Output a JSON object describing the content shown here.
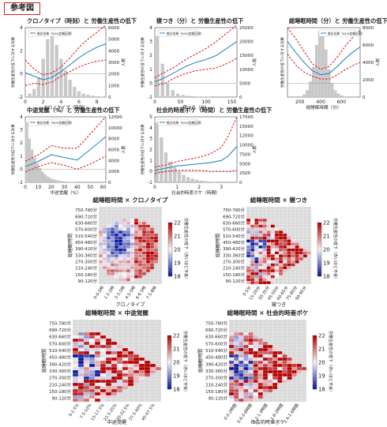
{
  "badge": "参考図",
  "colors": {
    "accent": "#d62222",
    "line": "#2e86c1",
    "hist": "#c8c8c8",
    "heat_high": "#b40000",
    "heat_low": "#0a1a9a",
    "heat_na": "#d9d9d9"
  },
  "chart_data": [
    {
      "type": "line",
      "title": "クロノタイプ（時刻）と 労働生産性の低下",
      "xlabel": "クロノタイプ（時刻）",
      "ylabel": "労働生産性の低下に対する効果",
      "y2label": "人数",
      "legend": "推計効果（95%信頼区間）",
      "legend_position": "top-left",
      "xticks": [
        "0",
        "2",
        "4",
        "6",
        "8"
      ],
      "xlim": [
        0,
        9
      ],
      "ylim": [
        -2,
        4
      ],
      "y2lim": [
        0,
        6000
      ],
      "yticks": [
        "-2",
        "0",
        "2",
        "4"
      ],
      "y2ticks": [
        "0",
        "1000",
        "2000",
        "3000",
        "4000",
        "5000",
        "6000"
      ],
      "hist": [
        {
          "x": 0.5,
          "v": 300
        },
        {
          "x": 1.0,
          "v": 700
        },
        {
          "x": 1.5,
          "v": 1700
        },
        {
          "x": 2.0,
          "v": 3300
        },
        {
          "x": 2.5,
          "v": 5000
        },
        {
          "x": 3.0,
          "v": 5500
        },
        {
          "x": 3.5,
          "v": 4500
        },
        {
          "x": 4.0,
          "v": 3300
        },
        {
          "x": 4.5,
          "v": 2300
        },
        {
          "x": 5.0,
          "v": 1500
        },
        {
          "x": 5.5,
          "v": 900
        },
        {
          "x": 6.0,
          "v": 500
        },
        {
          "x": 6.5,
          "v": 300
        },
        {
          "x": 7.0,
          "v": 200
        },
        {
          "x": 7.5,
          "v": 120
        },
        {
          "x": 8.0,
          "v": 80
        },
        {
          "x": 8.5,
          "v": 50
        }
      ],
      "estimate": {
        "x": [
          0,
          1,
          2,
          3,
          4,
          5,
          6,
          7,
          8,
          9
        ],
        "y": [
          0.1,
          -0.2,
          -0.5,
          -0.3,
          0.2,
          0.8,
          1.4,
          1.9,
          2.3,
          2.6
        ]
      },
      "ci_upper": {
        "x": [
          0,
          1,
          2,
          3,
          4,
          5,
          6,
          7,
          8,
          9
        ],
        "y": [
          1.2,
          0.4,
          -0.1,
          0.1,
          0.6,
          1.4,
          2.3,
          3.0,
          3.6,
          4.2
        ]
      },
      "ci_lower": {
        "x": [
          0,
          1,
          2,
          3,
          4,
          5,
          6,
          7,
          8,
          9
        ],
        "y": [
          -1.0,
          -0.8,
          -0.9,
          -0.7,
          -0.2,
          0.2,
          0.6,
          0.9,
          1.1,
          1.2
        ]
      }
    },
    {
      "type": "line",
      "title": "寝つき（分）と 労働生産性の低下",
      "xlabel": "寝つき（分）",
      "ylabel": "労働生産性の低下に対する効果",
      "y2label": "人数",
      "legend": "推計効果（95%信頼区間）",
      "legend_position": "top-left",
      "xticks": [
        "0",
        "50",
        "100",
        "150"
      ],
      "xlim": [
        0,
        160
      ],
      "ylim": [
        -1,
        4
      ],
      "y2lim": [
        0,
        25000
      ],
      "yticks": [
        "-1",
        "0",
        "1",
        "2",
        "3",
        "4"
      ],
      "y2ticks": [
        "0",
        "5000",
        "10000",
        "15000",
        "20000",
        "25000"
      ],
      "hist": [
        {
          "x": 5,
          "v": 22000
        },
        {
          "x": 15,
          "v": 12000
        },
        {
          "x": 25,
          "v": 5000
        },
        {
          "x": 35,
          "v": 2500
        },
        {
          "x": 45,
          "v": 1200
        },
        {
          "x": 55,
          "v": 800
        },
        {
          "x": 65,
          "v": 500
        },
        {
          "x": 75,
          "v": 300
        },
        {
          "x": 85,
          "v": 200
        },
        {
          "x": 95,
          "v": 150
        },
        {
          "x": 105,
          "v": 100
        }
      ],
      "estimate": {
        "x": [
          0,
          20,
          40,
          60,
          80,
          100,
          120,
          140,
          160
        ],
        "y": [
          0.1,
          0.4,
          0.8,
          1.2,
          1.5,
          1.7,
          2.0,
          2.5,
          3.0
        ]
      },
      "ci_upper": {
        "x": [
          0,
          20,
          40,
          60,
          80,
          100,
          120,
          140,
          160
        ],
        "y": [
          0.4,
          0.8,
          1.2,
          1.7,
          2.1,
          2.5,
          3.0,
          3.6,
          4.2
        ]
      },
      "ci_lower": {
        "x": [
          0,
          20,
          40,
          60,
          80,
          100,
          120,
          140,
          160
        ],
        "y": [
          -0.2,
          0.0,
          0.4,
          0.7,
          0.9,
          1.0,
          1.1,
          1.4,
          1.8
        ]
      }
    },
    {
      "type": "line",
      "title": "総睡眠時間（分）と 労働生産性の低下",
      "xlabel": "総睡眠時間（分）",
      "ylabel": "労働生産性の低下に対する効果",
      "y2label": "人数",
      "legend": "推計効果（95%信頼区間）",
      "legend_position": "top-right",
      "xticks": [
        "200",
        "400",
        "600"
      ],
      "xlim": [
        80,
        780
      ],
      "ylim": [
        -1,
        4
      ],
      "y2lim": [
        0,
        8000
      ],
      "yticks": [],
      "y2ticks": [
        "0",
        "2000",
        "4000",
        "6000",
        "8000"
      ],
      "hist": [
        {
          "x": 240,
          "v": 300
        },
        {
          "x": 270,
          "v": 800
        },
        {
          "x": 300,
          "v": 1800
        },
        {
          "x": 330,
          "v": 3500
        },
        {
          "x": 360,
          "v": 6000
        },
        {
          "x": 390,
          "v": 7500
        },
        {
          "x": 420,
          "v": 7000
        },
        {
          "x": 450,
          "v": 5500
        },
        {
          "x": 480,
          "v": 3200
        },
        {
          "x": 510,
          "v": 1600
        },
        {
          "x": 540,
          "v": 800
        },
        {
          "x": 570,
          "v": 400
        },
        {
          "x": 600,
          "v": 200
        }
      ],
      "estimate": {
        "x": [
          80,
          160,
          240,
          320,
          400,
          480,
          560,
          640,
          720,
          780
        ],
        "y": [
          3.0,
          2.2,
          1.5,
          0.9,
          0.6,
          0.7,
          1.2,
          1.8,
          2.3,
          2.6
        ]
      },
      "ci_upper": {
        "x": [
          80,
          160,
          240,
          320,
          400,
          480,
          560,
          640,
          720,
          780
        ],
        "y": [
          4.0,
          3.2,
          2.3,
          1.4,
          1.0,
          1.2,
          1.9,
          2.7,
          3.4,
          3.8
        ]
      },
      "ci_lower": {
        "x": [
          80,
          160,
          240,
          320,
          400,
          480,
          560,
          640,
          720,
          780
        ],
        "y": [
          2.1,
          1.3,
          0.8,
          0.5,
          0.3,
          0.3,
          0.6,
          1.0,
          1.3,
          1.5
        ]
      }
    },
    {
      "type": "line",
      "title": "中途覚醒（%）と 労働生産性の低下",
      "xlabel": "中途覚醒（%）",
      "ylabel": "労働生産性の低下に対する効果",
      "y2label": "人数",
      "legend": "推計効果（95%信頼区間）",
      "legend_position": "top-left",
      "xticks": [
        "0",
        "10",
        "20",
        "30",
        "40",
        "50",
        "60"
      ],
      "xlim": [
        0,
        62
      ],
      "ylim": [
        -1,
        4
      ],
      "y2lim": [
        0,
        12000
      ],
      "yticks": [
        "-1",
        "0",
        "1",
        "2",
        "3",
        "4"
      ],
      "y2ticks": [
        "0",
        "2000",
        "4000",
        "6000",
        "8000",
        "10000",
        "12000"
      ],
      "hist": [
        {
          "x": 1,
          "v": 11000
        },
        {
          "x": 3,
          "v": 8000
        },
        {
          "x": 5,
          "v": 6000
        },
        {
          "x": 7,
          "v": 4500
        },
        {
          "x": 9,
          "v": 3500
        },
        {
          "x": 11,
          "v": 2600
        },
        {
          "x": 13,
          "v": 2000
        },
        {
          "x": 15,
          "v": 1500
        },
        {
          "x": 17,
          "v": 1100
        },
        {
          "x": 19,
          "v": 800
        },
        {
          "x": 21,
          "v": 600
        },
        {
          "x": 23,
          "v": 450
        },
        {
          "x": 25,
          "v": 350
        },
        {
          "x": 27,
          "v": 250
        },
        {
          "x": 29,
          "v": 200
        },
        {
          "x": 31,
          "v": 150
        },
        {
          "x": 33,
          "v": 100
        },
        {
          "x": 35,
          "v": 80
        },
        {
          "x": 37,
          "v": 60
        }
      ],
      "estimate": {
        "x": [
          0,
          10,
          20,
          30,
          40,
          50,
          62
        ],
        "y": [
          0.2,
          0.6,
          1.1,
          0.9,
          0.7,
          1.5,
          2.5
        ]
      },
      "ci_upper": {
        "x": [
          0,
          10,
          20,
          30,
          40,
          50,
          62
        ],
        "y": [
          0.6,
          1.1,
          1.8,
          1.6,
          1.6,
          2.7,
          4.0
        ]
      },
      "ci_lower": {
        "x": [
          0,
          10,
          20,
          30,
          40,
          50,
          62
        ],
        "y": [
          -0.2,
          0.2,
          0.5,
          0.3,
          0.0,
          0.4,
          1.0
        ]
      }
    },
    {
      "type": "line",
      "title": "社会的時差ボケ（時間）と 労働生産性の低下",
      "xlabel": "社会的時差ボケ（時間）",
      "ylabel": "労働生産性の低下に対する効果",
      "y2label": "人数",
      "legend": "推計効果（95%信頼区間）",
      "legend_position": "top-left",
      "xticks": [
        "0",
        "1",
        "2",
        "3"
      ],
      "xlim": [
        0,
        3.7
      ],
      "ylim": [
        -1,
        5
      ],
      "y2lim": [
        0,
        17500
      ],
      "yticks": [
        "-1",
        "0",
        "1",
        "2",
        "3",
        "4",
        "5"
      ],
      "y2ticks": [
        "0",
        "2500",
        "5000",
        "7500",
        "10000",
        "12500",
        "15000",
        "17500"
      ],
      "hist": [
        {
          "x": 0.1,
          "v": 16000
        },
        {
          "x": 0.3,
          "v": 12000
        },
        {
          "x": 0.5,
          "v": 8000
        },
        {
          "x": 0.7,
          "v": 5500
        },
        {
          "x": 0.9,
          "v": 4000
        },
        {
          "x": 1.1,
          "v": 2800
        },
        {
          "x": 1.3,
          "v": 2000
        },
        {
          "x": 1.5,
          "v": 1400
        },
        {
          "x": 1.7,
          "v": 1000
        },
        {
          "x": 1.9,
          "v": 700
        },
        {
          "x": 2.1,
          "v": 450
        },
        {
          "x": 2.3,
          "v": 300
        },
        {
          "x": 2.5,
          "v": 200
        },
        {
          "x": 2.7,
          "v": 120
        }
      ],
      "estimate": {
        "x": [
          0,
          0.5,
          1,
          1.5,
          2,
          2.5,
          3,
          3.3,
          3.7
        ],
        "y": [
          0.1,
          0.3,
          0.5,
          0.6,
          0.7,
          0.8,
          1.0,
          1.4,
          2.3
        ]
      },
      "ci_upper": {
        "x": [
          0,
          0.5,
          1,
          1.5,
          2,
          2.5,
          3,
          3.3,
          3.7
        ],
        "y": [
          0.4,
          0.6,
          0.9,
          1.1,
          1.3,
          1.6,
          2.2,
          3.2,
          5.0
        ]
      },
      "ci_lower": {
        "x": [
          0,
          0.5,
          1,
          1.5,
          2,
          2.5,
          3,
          3.3,
          3.7
        ],
        "y": [
          -0.2,
          0.0,
          0.1,
          0.1,
          0.1,
          0.0,
          0.0,
          0.0,
          0.1
        ]
      }
    },
    {
      "type": "heatmap",
      "title": "総睡眠時間 × クロノタイプ",
      "xlabel": "クロノタイプ",
      "ylabel": "総睡眠時間",
      "xcats": [
        "0-0.5時",
        "1.5-2時",
        "3-3.5時",
        "4.5-5時",
        "6-6.5時",
        "7.5-8時"
      ],
      "ycats": [
        "750-780分",
        "690-720分",
        "630-660分",
        "570-600分",
        "510-540分",
        "450-480分",
        "390-420分",
        "330-360分",
        "270-300分",
        "210-240分",
        "150-180分",
        "90-120分"
      ],
      "colorbar": {
        "label": "労働生産性の低下（赤いほど不良）",
        "min": 18,
        "max": 22,
        "ticks": [
          "18",
          "19",
          "20",
          "21",
          "22"
        ]
      },
      "shape": "blob"
    },
    {
      "type": "heatmap",
      "title": "総睡眠時間 × 寝つき",
      "xlabel": "寝つき",
      "ylabel": "総睡眠時間",
      "xcats": [
        "0-5分",
        "15-20分",
        "30-35分",
        "45-50分",
        "60-65分",
        "75-80分",
        "90-95分"
      ],
      "ycats": [
        "750-780分",
        "690-720分",
        "630-660分",
        "570-600分",
        "510-540分",
        "450-480分",
        "390-420分",
        "330-360分",
        "270-300分",
        "210-240分",
        "150-180分",
        "90-120分"
      ],
      "colorbar": {
        "label": "労働生産性の低下（赤いほど不良）",
        "min": 18,
        "max": 22,
        "ticks": [
          "18",
          "19",
          "20",
          "21",
          "22"
        ]
      },
      "shape": "triangle"
    },
    {
      "type": "heatmap",
      "title": "総睡眠時間 × 中途覚醒",
      "xlabel": "中途覚醒",
      "ylabel": "総睡眠時間",
      "xcats": [
        "0-2.5%",
        "7.5-10%",
        "15-17.5%",
        "22.5-25%",
        "30-32.5%",
        "37.5-40%",
        "45-47.5%"
      ],
      "ycats": [
        "750-780分",
        "690-720分",
        "630-660分",
        "570-600分",
        "510-540分",
        "450-480分",
        "390-420分",
        "330-360分",
        "270-300分",
        "210-240分",
        "150-180分",
        "90-120分"
      ],
      "colorbar": {
        "label": "労働生産性の低下（赤いほど不良）",
        "min": 18,
        "max": 22,
        "ticks": [
          "18",
          "19",
          "20",
          "21",
          "22"
        ]
      },
      "shape": "triangle"
    },
    {
      "type": "heatmap",
      "title": "総睡眠時間 × 社会的時差ボケ",
      "xlabel": "社会的時差ボケ",
      "ylabel": "総睡眠時間",
      "xcats": [
        "0-0.2時間",
        "0.6-0.8時間",
        "1.2-1.4時間",
        "1.8-2時間",
        "2.4-2.6時間"
      ],
      "ycats": [
        "750-780分",
        "690-720分",
        "630-660分",
        "570-600分",
        "510-540分",
        "450-480分",
        "390-420分",
        "330-360分",
        "270-300分",
        "210-240分",
        "150-180分",
        "90-120分"
      ],
      "colorbar": {
        "label": "労働生産性の低下（赤いほど不良）",
        "min": 18,
        "max": 22,
        "ticks": [
          "18",
          "19",
          "20",
          "21",
          "22"
        ]
      },
      "shape": "triangle"
    }
  ]
}
